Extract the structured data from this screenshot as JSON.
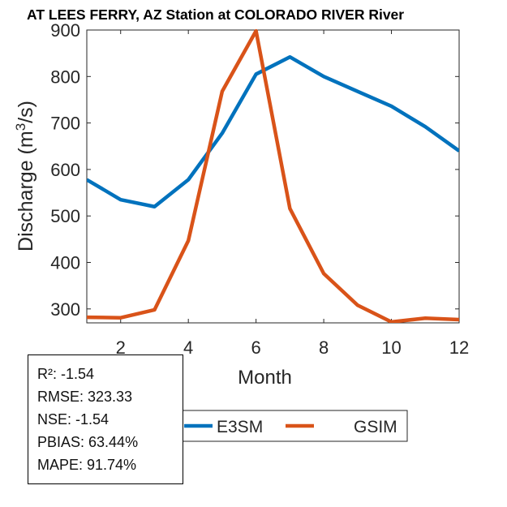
{
  "chart_data": {
    "type": "line",
    "title": "AT LEES FERRY, AZ  Station at  COLORADO RIVER  River",
    "xlabel": "Month",
    "ylabel_main": "Discharge (m",
    "ylabel_sup": "3",
    "ylabel_end": "/s)",
    "xlim": [
      1,
      12
    ],
    "ylim": [
      270,
      900
    ],
    "xticks": [
      2,
      4,
      6,
      8,
      10,
      12
    ],
    "yticks": [
      300,
      400,
      500,
      600,
      700,
      800,
      900
    ],
    "x": [
      1,
      2,
      3,
      4,
      5,
      6,
      7,
      8,
      9,
      10,
      11,
      12
    ],
    "series": [
      {
        "name": "E3SM",
        "color": "#0072BD",
        "values": [
          578,
          535,
          520,
          578,
          678,
          805,
          842,
          800,
          768,
          736,
          692,
          640
        ]
      },
      {
        "name": "GSIM",
        "color": "#D95319",
        "values": [
          282,
          281,
          298,
          447,
          768,
          898,
          516,
          376,
          308,
          272,
          280,
          277
        ]
      }
    ],
    "legend": [
      "E3SM",
      "GSIM"
    ],
    "legend_position": "bottom",
    "grid": false
  },
  "stats": {
    "r2": "R²: -1.54",
    "rmse": "RMSE: 323.33",
    "nse": "NSE: -1.54",
    "pbias": "PBIAS: 63.44%",
    "mape": "MAPE: 91.74%"
  }
}
